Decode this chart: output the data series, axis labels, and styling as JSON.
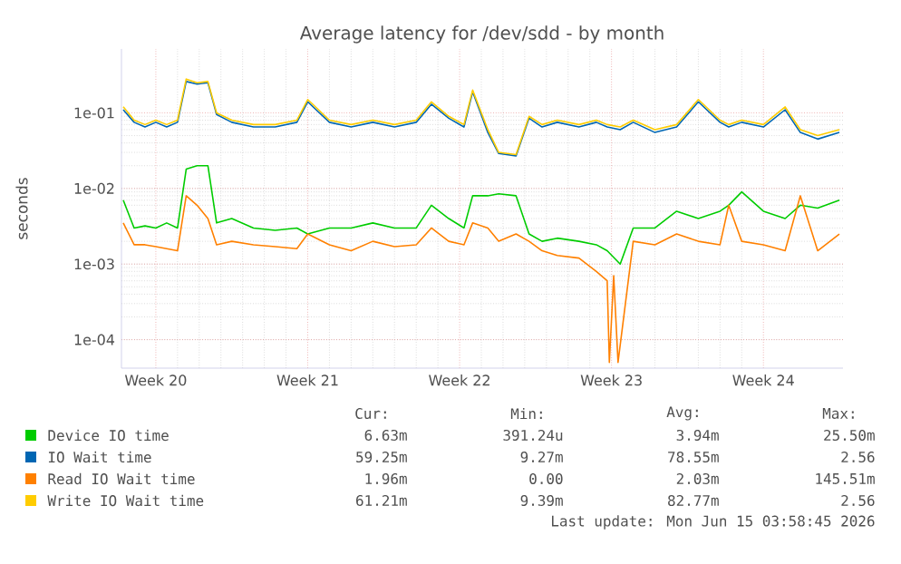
{
  "chart_data": {
    "type": "line",
    "title": "Average latency for /dev/sdd - by month",
    "ylabel": "seconds",
    "log": "y",
    "grid": true,
    "legend": "bottom",
    "marker": "none",
    "line_style": "solid",
    "xlim": [
      "2026-05-12T22:00",
      "2026-06-15T04:00"
    ],
    "ylim": [
      4.2e-05,
      0.7
    ],
    "xticks": [
      {
        "value": "2026-05-14T12:00",
        "label": "Week 20"
      },
      {
        "value": "2026-05-21T12:00",
        "label": "Week 21"
      },
      {
        "value": "2026-05-28T12:00",
        "label": "Week 22"
      },
      {
        "value": "2026-06-04T12:00",
        "label": "Week 23"
      },
      {
        "value": "2026-06-11T12:00",
        "label": "Week 24"
      }
    ],
    "yticks": [
      {
        "value": 0.0001,
        "label": "1e-04"
      },
      {
        "value": 0.001,
        "label": "1e-03"
      },
      {
        "value": 0.01,
        "label": "1e-02"
      },
      {
        "value": 0.1,
        "label": "1e-01"
      }
    ],
    "x": [
      "2026-05-13T00:00",
      "2026-05-13T12:00",
      "2026-05-14T00:00",
      "2026-05-14T12:00",
      "2026-05-15T00:00",
      "2026-05-15T12:00",
      "2026-05-15T21:36",
      "2026-05-16T09:36",
      "2026-05-16T21:36",
      "2026-05-17T07:12",
      "2026-05-18T00:00",
      "2026-05-19T00:00",
      "2026-05-20T00:00",
      "2026-05-21T00:00",
      "2026-05-21T12:00",
      "2026-05-22T12:00",
      "2026-05-23T12:00",
      "2026-05-24T12:00",
      "2026-05-25T12:00",
      "2026-05-26T12:00",
      "2026-05-27T04:48",
      "2026-05-28T00:00",
      "2026-05-28T16:48",
      "2026-05-29T02:24",
      "2026-05-29T19:12",
      "2026-05-30T07:12",
      "2026-05-31T02:24",
      "2026-05-31T16:48",
      "2026-06-01T07:12",
      "2026-06-02T00:00",
      "2026-06-03T00:00",
      "2026-06-03T19:12",
      "2026-06-04T07:12",
      "2026-06-04T21:36",
      "2026-06-05T12:00",
      "2026-06-06T12:00",
      "2026-06-07T12:00",
      "2026-06-08T12:00",
      "2026-06-09T12:00",
      "2026-06-09T21:36",
      "2026-06-10T12:00",
      "2026-06-11T12:00",
      "2026-06-12T12:00",
      "2026-06-13T04:48",
      "2026-06-14T00:00",
      "2026-06-15T00:00"
    ],
    "series": [
      {
        "name": "Device IO time",
        "color": "#00cc00",
        "values": [
          0.007,
          0.003,
          0.0032,
          0.003,
          0.0035,
          0.003,
          0.018,
          0.02,
          0.02,
          0.0035,
          0.004,
          0.003,
          0.0028,
          0.003,
          0.0025,
          0.003,
          0.003,
          0.0035,
          0.003,
          0.003,
          0.006,
          0.004,
          0.003,
          0.008,
          0.008,
          0.0085,
          0.008,
          0.0025,
          0.002,
          0.0022,
          0.002,
          0.0018,
          0.0015,
          0.001,
          0.003,
          0.003,
          0.005,
          0.004,
          0.005,
          0.006,
          0.009,
          0.005,
          0.004,
          0.006,
          0.0055,
          0.007
        ]
      },
      {
        "name": "IO Wait time",
        "color": "#0066b3",
        "values": [
          0.11,
          0.075,
          0.065,
          0.075,
          0.065,
          0.075,
          0.26,
          0.24,
          0.25,
          0.095,
          0.075,
          0.065,
          0.065,
          0.075,
          0.14,
          0.075,
          0.065,
          0.075,
          0.065,
          0.075,
          0.13,
          0.085,
          0.065,
          0.19,
          0.055,
          0.029,
          0.027,
          0.085,
          0.065,
          0.075,
          0.065,
          0.075,
          0.065,
          0.06,
          0.075,
          0.055,
          0.065,
          0.14,
          0.075,
          0.065,
          0.075,
          0.065,
          0.11,
          0.055,
          0.045,
          0.055
        ]
      },
      {
        "name": "Read IO Wait time",
        "color": "#ff8000",
        "x": [
          "2026-05-13T00:00",
          "2026-05-13T12:00",
          "2026-05-14T00:00",
          "2026-05-14T12:00",
          "2026-05-15T00:00",
          "2026-05-15T12:00",
          "2026-05-15T21:36",
          "2026-05-16T09:36",
          "2026-05-16T21:36",
          "2026-05-17T07:12",
          "2026-05-18T00:00",
          "2026-05-19T00:00",
          "2026-05-20T00:00",
          "2026-05-21T00:00",
          "2026-05-21T12:00",
          "2026-05-22T12:00",
          "2026-05-23T12:00",
          "2026-05-24T12:00",
          "2026-05-25T12:00",
          "2026-05-26T12:00",
          "2026-05-27T04:48",
          "2026-05-28T00:00",
          "2026-05-28T16:48",
          "2026-05-29T02:24",
          "2026-05-29T19:12",
          "2026-05-30T07:12",
          "2026-05-31T02:24",
          "2026-05-31T16:48",
          "2026-06-01T07:12",
          "2026-06-02T00:00",
          "2026-06-03T00:00",
          "2026-06-03T19:12",
          "2026-06-04T07:12",
          "2026-06-04T09:36",
          "2026-06-04T14:24",
          "2026-06-04T19:12",
          "2026-06-05T12:00",
          "2026-06-06T12:00",
          "2026-06-07T12:00",
          "2026-06-08T12:00",
          "2026-06-09T12:00",
          "2026-06-09T21:36",
          "2026-06-10T12:00",
          "2026-06-11T12:00",
          "2026-06-12T12:00",
          "2026-06-13T04:48",
          "2026-06-14T00:00",
          "2026-06-15T00:00"
        ],
        "values": [
          0.0035,
          0.0018,
          0.0018,
          0.0017,
          0.0016,
          0.0015,
          0.008,
          0.006,
          0.004,
          0.0018,
          0.002,
          0.0018,
          0.0017,
          0.0016,
          0.0025,
          0.0018,
          0.0015,
          0.002,
          0.0017,
          0.0018,
          0.003,
          0.002,
          0.0018,
          0.0035,
          0.003,
          0.002,
          0.0025,
          0.002,
          0.0015,
          0.0013,
          0.0012,
          0.0008,
          0.0006,
          5e-05,
          0.0007,
          5e-05,
          0.002,
          0.0018,
          0.0025,
          0.002,
          0.0018,
          0.006,
          0.002,
          0.0018,
          0.0015,
          0.008,
          0.0015,
          0.0025
        ]
      },
      {
        "name": "Write IO Wait time",
        "color": "#ffcc00",
        "values": [
          0.12,
          0.08,
          0.07,
          0.08,
          0.07,
          0.08,
          0.28,
          0.25,
          0.26,
          0.1,
          0.08,
          0.07,
          0.07,
          0.08,
          0.15,
          0.08,
          0.07,
          0.08,
          0.07,
          0.08,
          0.14,
          0.09,
          0.07,
          0.2,
          0.06,
          0.03,
          0.028,
          0.09,
          0.07,
          0.08,
          0.07,
          0.08,
          0.07,
          0.065,
          0.08,
          0.06,
          0.07,
          0.15,
          0.08,
          0.07,
          0.08,
          0.07,
          0.12,
          0.06,
          0.05,
          0.06
        ]
      }
    ],
    "annotations": [
      "Cur:",
      "Min:",
      "Avg:",
      "Max:",
      "6.63m",
      "391.24u",
      "3.94m",
      "25.50m",
      "59.25m",
      "9.27m",
      "78.55m",
      "2.56",
      "1.96m",
      "0.00",
      "2.03m",
      "145.51m",
      "61.21m",
      "9.39m",
      "82.77m",
      "2.56",
      "Last update: Mon Jun 15 03:58:45 2026"
    ]
  }
}
